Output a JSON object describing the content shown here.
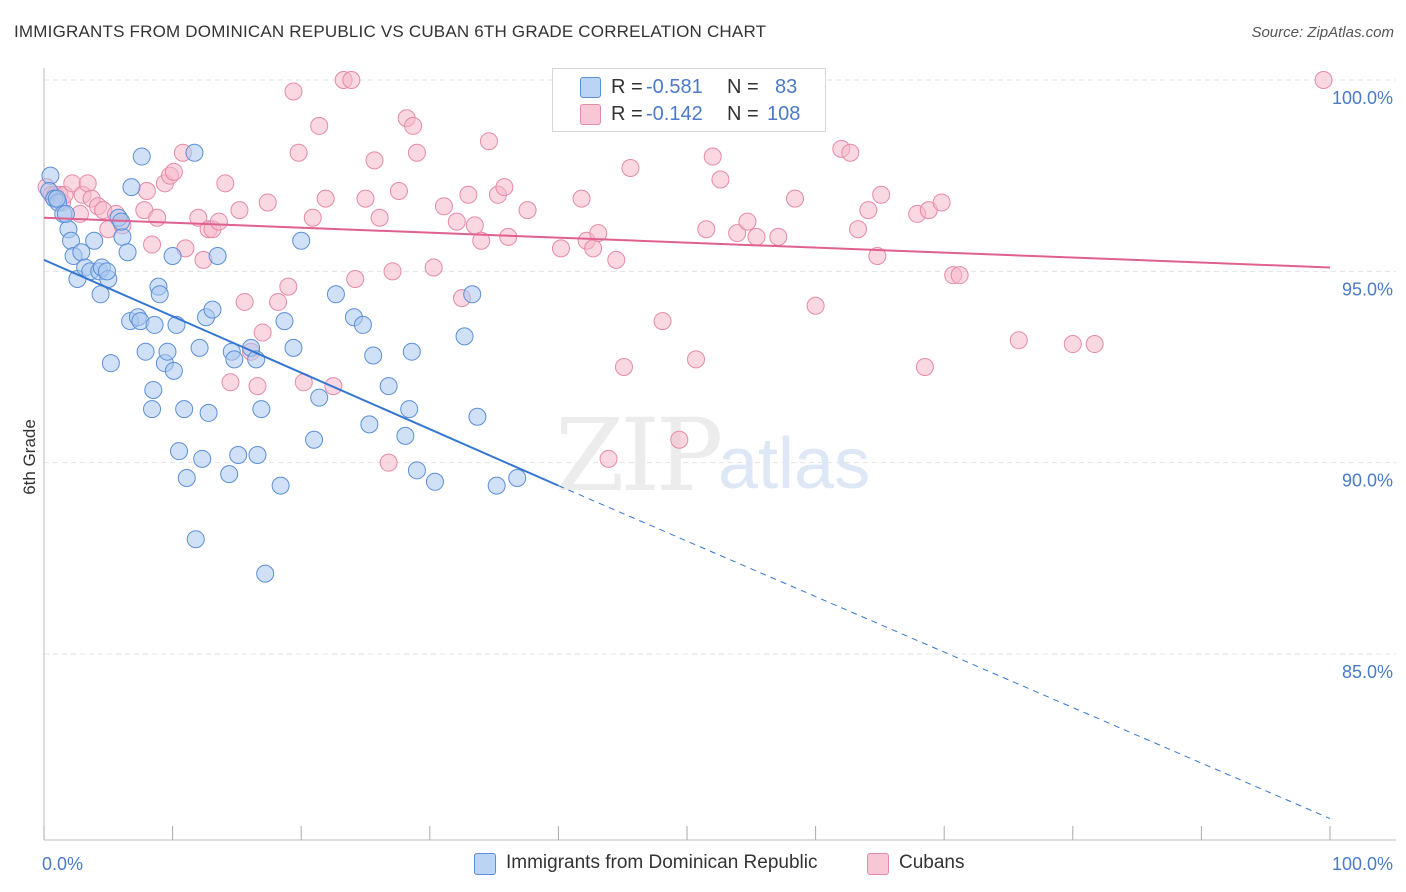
{
  "header": {
    "title": "IMMIGRANTS FROM DOMINICAN REPUBLIC VS CUBAN 6TH GRADE CORRELATION CHART",
    "source": "Source: ZipAtlas.com"
  },
  "legend": {
    "rows": [
      {
        "r_label": "R =",
        "r_value": "-0.581",
        "n_label": "N =",
        "n_value": "83"
      },
      {
        "r_label": "R =",
        "r_value": "-0.142",
        "n_label": "N =",
        "n_value": "108"
      }
    ]
  },
  "bottom_legend": [
    "Immigrants from Dominican Republic",
    "Cubans"
  ],
  "watermark": {
    "zip": "ZIP",
    "atlas": "atlas"
  },
  "colors": {
    "blue_fill": "#a9c8f0",
    "blue_stroke": "#5b8fd6",
    "blue_line": "#3476d2",
    "pink_fill": "#f6b8cb",
    "pink_stroke": "#e58aa8",
    "pink_line": "#e0608f",
    "tick_text": "#4a7ac8",
    "grid": "#e3e3e3"
  },
  "chart_data": {
    "type": "scatter",
    "title": "IMMIGRANTS FROM DOMINICAN REPUBLIC VS CUBAN 6TH GRADE CORRELATION CHART",
    "xlabel": "",
    "ylabel": "6th Grade",
    "xlim": [
      0,
      100
    ],
    "ylim": [
      80.6,
      100.6
    ],
    "x_tick_labels": [
      "0.0%",
      "100.0%"
    ],
    "y_ticks": [
      85,
      90,
      95,
      100
    ],
    "y_tick_labels": [
      "85.0%",
      "90.0%",
      "95.0%",
      "100.0%"
    ],
    "grid": true,
    "legend_position": "top-center",
    "series": [
      {
        "name": "Immigrants from Dominican Republic",
        "color": "#a9c8f0",
        "r": -0.581,
        "n": 83,
        "trend": {
          "x": [
            0,
            40
          ],
          "y": [
            95.3,
            89.4
          ],
          "dashed_to": [
            100,
            80.7
          ]
        },
        "points": [
          [
            0.5,
            97.5
          ],
          [
            0.4,
            97.1
          ],
          [
            0.8,
            96.9
          ],
          [
            1.1,
            96.8
          ],
          [
            1.5,
            96.5
          ],
          [
            1.9,
            96.1
          ],
          [
            2.1,
            95.8
          ],
          [
            2.3,
            95.4
          ],
          [
            2.6,
            94.8
          ],
          [
            2.9,
            95.5
          ],
          [
            3.2,
            95.1
          ],
          [
            3.6,
            95.0
          ],
          [
            3.9,
            95.8
          ],
          [
            4.3,
            95.0
          ],
          [
            4.5,
            95.1
          ],
          [
            4.4,
            94.4
          ],
          [
            5.0,
            94.8
          ],
          [
            5.2,
            92.6
          ],
          [
            5.8,
            96.4
          ],
          [
            6.1,
            95.9
          ],
          [
            6.5,
            95.5
          ],
          [
            6.7,
            93.7
          ],
          [
            6.8,
            97.2
          ],
          [
            7.3,
            93.8
          ],
          [
            7.5,
            93.7
          ],
          [
            7.6,
            98.0
          ],
          [
            7.9,
            92.9
          ],
          [
            8.4,
            91.4
          ],
          [
            8.5,
            91.9
          ],
          [
            8.6,
            93.6
          ],
          [
            8.9,
            94.6
          ],
          [
            9.0,
            94.4
          ],
          [
            9.4,
            92.6
          ],
          [
            9.6,
            92.9
          ],
          [
            10.0,
            95.4
          ],
          [
            10.1,
            92.4
          ],
          [
            10.3,
            93.6
          ],
          [
            10.5,
            90.3
          ],
          [
            10.9,
            91.4
          ],
          [
            11.1,
            89.6
          ],
          [
            11.7,
            98.1
          ],
          [
            11.8,
            88.0
          ],
          [
            12.1,
            93.0
          ],
          [
            12.3,
            90.1
          ],
          [
            12.6,
            93.8
          ],
          [
            12.8,
            91.3
          ],
          [
            13.1,
            94.0
          ],
          [
            13.5,
            95.4
          ],
          [
            14.4,
            89.7
          ],
          [
            14.6,
            92.9
          ],
          [
            14.8,
            92.7
          ],
          [
            15.1,
            90.2
          ],
          [
            16.1,
            93.0
          ],
          [
            16.5,
            92.7
          ],
          [
            16.6,
            90.2
          ],
          [
            16.9,
            91.4
          ],
          [
            17.2,
            87.1
          ],
          [
            18.4,
            89.4
          ],
          [
            18.7,
            93.7
          ],
          [
            19.4,
            93.0
          ],
          [
            20.0,
            95.8
          ],
          [
            21.0,
            90.6
          ],
          [
            21.4,
            91.7
          ],
          [
            22.7,
            94.4
          ],
          [
            24.1,
            93.8
          ],
          [
            24.8,
            93.6
          ],
          [
            25.3,
            91.0
          ],
          [
            25.6,
            92.8
          ],
          [
            26.8,
            92.0
          ],
          [
            28.1,
            90.7
          ],
          [
            28.4,
            91.4
          ],
          [
            28.6,
            92.9
          ],
          [
            29.0,
            89.8
          ],
          [
            30.4,
            89.5
          ],
          [
            32.7,
            93.3
          ],
          [
            33.3,
            94.4
          ],
          [
            33.7,
            91.2
          ],
          [
            35.2,
            89.4
          ],
          [
            36.8,
            89.6
          ],
          [
            1.0,
            96.9
          ],
          [
            1.7,
            96.5
          ],
          [
            6.0,
            96.3
          ],
          [
            4.9,
            95.0
          ]
        ]
      },
      {
        "name": "Cubans",
        "color": "#f6b8cb",
        "r": -0.142,
        "n": 108,
        "trend": {
          "x": [
            0,
            100
          ],
          "y": [
            96.4,
            95.1
          ]
        },
        "points": [
          [
            0.2,
            97.2
          ],
          [
            0.6,
            97.0
          ],
          [
            0.9,
            97.0
          ],
          [
            1.2,
            97.0
          ],
          [
            1.4,
            96.8
          ],
          [
            1.6,
            97.0
          ],
          [
            2.2,
            97.3
          ],
          [
            2.8,
            96.5
          ],
          [
            3.0,
            97.0
          ],
          [
            3.4,
            97.3
          ],
          [
            3.7,
            96.9
          ],
          [
            4.2,
            96.7
          ],
          [
            4.6,
            96.6
          ],
          [
            5.0,
            96.1
          ],
          [
            5.6,
            96.5
          ],
          [
            6.1,
            96.2
          ],
          [
            7.8,
            96.6
          ],
          [
            8.0,
            97.1
          ],
          [
            8.4,
            95.7
          ],
          [
            8.8,
            96.4
          ],
          [
            9.4,
            97.3
          ],
          [
            9.8,
            97.5
          ],
          [
            10.1,
            97.6
          ],
          [
            10.8,
            98.1
          ],
          [
            11.0,
            95.6
          ],
          [
            12.0,
            96.4
          ],
          [
            12.4,
            95.3
          ],
          [
            12.8,
            96.1
          ],
          [
            13.1,
            96.1
          ],
          [
            13.6,
            96.3
          ],
          [
            14.1,
            97.3
          ],
          [
            14.5,
            92.1
          ],
          [
            15.2,
            96.6
          ],
          [
            15.6,
            94.2
          ],
          [
            16.1,
            92.9
          ],
          [
            16.6,
            92.0
          ],
          [
            17.0,
            93.4
          ],
          [
            17.4,
            96.8
          ],
          [
            18.2,
            94.2
          ],
          [
            19.0,
            94.6
          ],
          [
            19.4,
            99.7
          ],
          [
            19.8,
            98.1
          ],
          [
            20.2,
            92.1
          ],
          [
            20.9,
            96.4
          ],
          [
            21.4,
            98.8
          ],
          [
            21.9,
            96.9
          ],
          [
            22.5,
            92.0
          ],
          [
            23.3,
            100.0
          ],
          [
            23.9,
            100.0
          ],
          [
            24.2,
            94.8
          ],
          [
            25.0,
            96.9
          ],
          [
            25.7,
            97.9
          ],
          [
            26.1,
            96.4
          ],
          [
            26.8,
            90.0
          ],
          [
            27.1,
            95.0
          ],
          [
            27.6,
            97.1
          ],
          [
            28.2,
            99.0
          ],
          [
            28.7,
            98.8
          ],
          [
            29.0,
            98.1
          ],
          [
            30.3,
            95.1
          ],
          [
            31.1,
            96.7
          ],
          [
            32.1,
            96.3
          ],
          [
            32.5,
            94.3
          ],
          [
            33.0,
            97.0
          ],
          [
            33.5,
            96.2
          ],
          [
            34.0,
            95.8
          ],
          [
            34.6,
            98.4
          ],
          [
            35.3,
            97.0
          ],
          [
            35.8,
            97.2
          ],
          [
            36.1,
            95.9
          ],
          [
            37.6,
            96.6
          ],
          [
            40.2,
            95.6
          ],
          [
            41.8,
            96.9
          ],
          [
            42.2,
            95.8
          ],
          [
            42.7,
            95.6
          ],
          [
            43.1,
            96.0
          ],
          [
            43.9,
            90.1
          ],
          [
            44.5,
            95.3
          ],
          [
            45.1,
            92.5
          ],
          [
            45.6,
            97.7
          ],
          [
            48.1,
            93.7
          ],
          [
            49.4,
            90.6
          ],
          [
            50.7,
            92.7
          ],
          [
            51.5,
            96.1
          ],
          [
            52.0,
            98.0
          ],
          [
            52.6,
            97.4
          ],
          [
            53.9,
            96.0
          ],
          [
            54.7,
            96.3
          ],
          [
            55.4,
            95.9
          ],
          [
            57.1,
            95.9
          ],
          [
            58.4,
            96.9
          ],
          [
            60.0,
            94.1
          ],
          [
            62.0,
            98.2
          ],
          [
            62.7,
            98.1
          ],
          [
            63.3,
            96.1
          ],
          [
            64.1,
            96.6
          ],
          [
            64.8,
            95.4
          ],
          [
            65.1,
            97.0
          ],
          [
            67.9,
            96.5
          ],
          [
            68.5,
            92.5
          ],
          [
            68.8,
            96.6
          ],
          [
            69.8,
            96.8
          ],
          [
            70.7,
            94.9
          ],
          [
            71.2,
            94.9
          ],
          [
            75.8,
            93.2
          ],
          [
            80.0,
            93.1
          ],
          [
            81.7,
            93.1
          ],
          [
            99.5,
            100.0
          ]
        ]
      }
    ]
  }
}
